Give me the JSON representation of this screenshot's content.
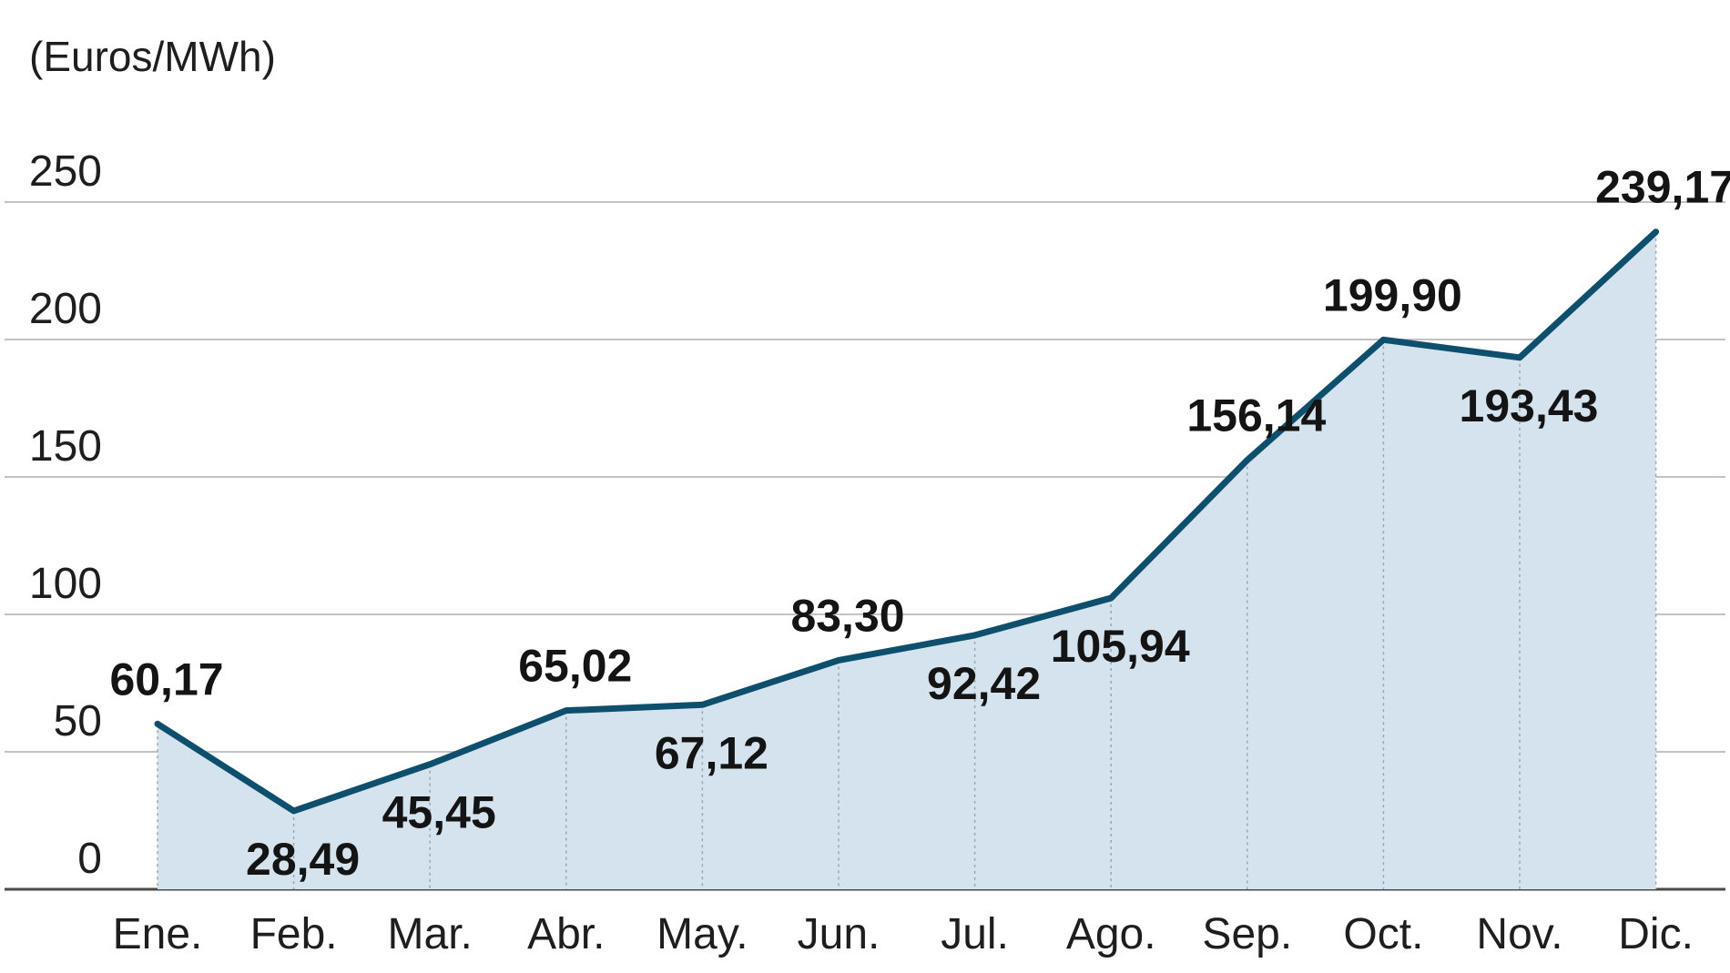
{
  "chart_data": {
    "type": "area",
    "unit_label": "(Euros/MWh)",
    "categories": [
      "Ene.",
      "Feb.",
      "Mar.",
      "Abr.",
      "May.",
      "Jun.",
      "Jul.",
      "Ago.",
      "Sep.",
      "Oct.",
      "Nov.",
      "Dic."
    ],
    "series": [
      {
        "values": [
          60.17,
          28.49,
          45.45,
          65.02,
          67.12,
          83.3,
          92.42,
          105.94,
          156.14,
          199.9,
          193.43,
          239.17
        ],
        "labels": [
          "60,17",
          "28,49",
          "45,45",
          "65,02",
          "67,12",
          "83,30",
          "92,42",
          "105,94",
          "156,14",
          "199,90",
          "193,43",
          "239,17"
        ]
      }
    ],
    "ylim": [
      0,
      250
    ],
    "yticks": [
      0,
      50,
      100,
      150,
      200,
      250
    ],
    "ytick_labels": [
      "0",
      "50",
      "100",
      "150",
      "200",
      "250"
    ],
    "grid": true,
    "colors": {
      "line": "#0f4f6e",
      "fill": "#d4e3ed",
      "grid": "#c3c3c3",
      "text": "#1e1e1e"
    }
  }
}
